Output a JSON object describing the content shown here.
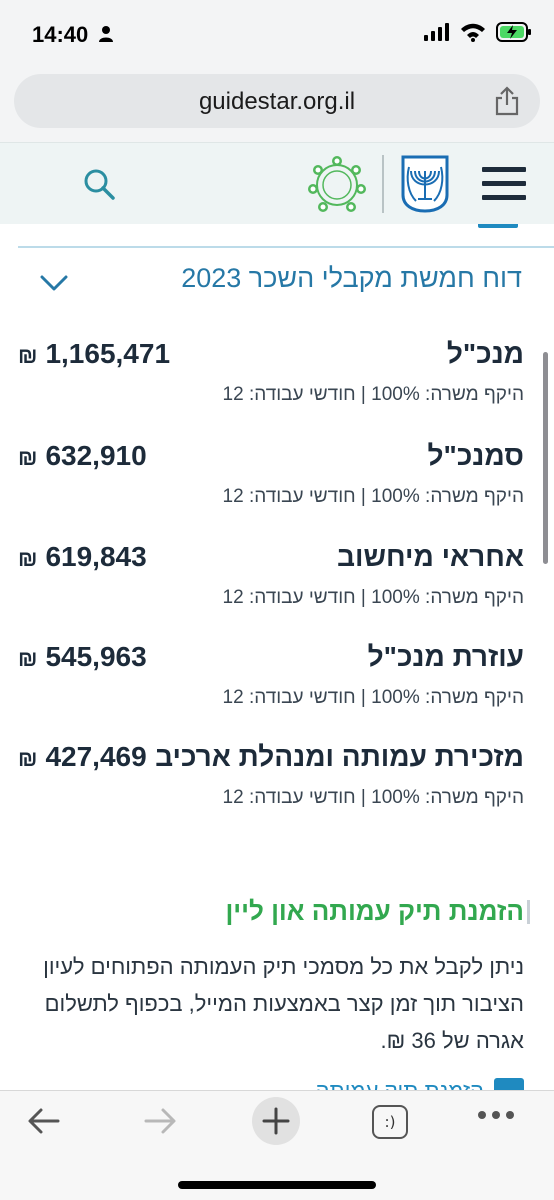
{
  "status": {
    "time": "14:40"
  },
  "browser": {
    "url": "guidestar.org.il"
  },
  "site_header": {
    "icons": [
      "search-icon",
      "guidestar-logo",
      "state-emblem-logo",
      "hamburger-menu-icon"
    ]
  },
  "report": {
    "title": "דוח חמשת מקבלי השכר 2023",
    "currency_symbol": "₪",
    "rows": [
      {
        "role": "מנכ\"ל",
        "amount": "1,165,471",
        "details": "היקף משרה: 100% | חודשי עבודה: 12"
      },
      {
        "role": "סמנכ\"ל",
        "amount": "632,910",
        "details": "היקף משרה: 100% | חודשי עבודה: 12"
      },
      {
        "role": "אחראי מיחשוב",
        "amount": "619,843",
        "details": "היקף משרה: 100% | חודשי עבודה: 12"
      },
      {
        "role": "עוזרת מנכ\"ל",
        "amount": "545,963",
        "details": "היקף משרה: 100% | חודשי עבודה: 12"
      },
      {
        "role": "מזכירת עמותה ומנהלת ארכיב",
        "amount": "427,469",
        "details": "היקף משרה: 100% | חודשי עבודה: 12"
      }
    ]
  },
  "order": {
    "title": "הזמנת תיק עמותה און ליין",
    "text": "ניתן לקבל את כל מסמכי תיק העמותה הפתוחים לעיון הציבור תוך זמן קצר באמצעות המייל, בכפוף לתשלום אגרה של 36 ₪.",
    "partial_link": "הזמנת תיק עמותה"
  },
  "toolbar": {
    "tabs_label": ":)"
  },
  "colors": {
    "accent_blue": "#2678a6",
    "green_heading": "#32a84f",
    "header_bg": "#eef4f4",
    "dark_text": "#1d2b3a"
  }
}
